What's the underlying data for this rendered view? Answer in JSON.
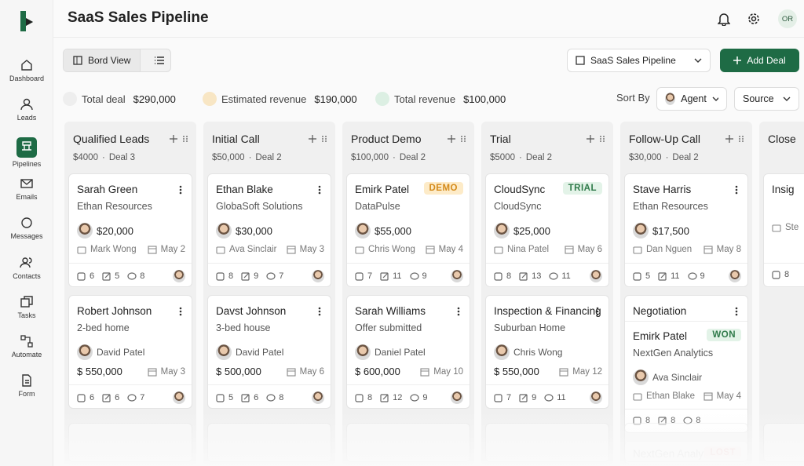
{
  "sidebar": {
    "items": [
      "Dashboard",
      "Leads",
      "Pipelines",
      "Emails",
      "Messages",
      "Contacts",
      "Tasks",
      "Automate",
      "Form"
    ]
  },
  "header": {
    "title": "SaaS Sales Pipeline",
    "avatar": "OR"
  },
  "toolbar": {
    "view": "Bord View",
    "pipeline": "SaaS Sales Pipeline",
    "add": "Add Deal"
  },
  "stats": [
    {
      "label": "Total deal",
      "value": "$290,000"
    },
    {
      "label": "Estimated revenue",
      "value": "$190,000"
    },
    {
      "label": "Total revenue",
      "value": "$100,000"
    }
  ],
  "sort": {
    "label": "Sort By",
    "agent": "Agent",
    "source": "Source"
  },
  "columns": [
    {
      "title": "Qualified Leads",
      "amount": "$4000",
      "deals": "Deal 3",
      "cards": [
        {
          "name": "Sarah Green",
          "company": "Ethan Resources",
          "amount": "$20,000",
          "owner": "Mark Wong",
          "date": "May 2",
          "counts": [
            6,
            5,
            8
          ]
        },
        {
          "name": "Robert Johnson",
          "company": "2-bed home",
          "person": "David Patel",
          "amount": "$ 550,000",
          "date": "May 3",
          "counts": [
            6,
            6,
            7
          ]
        }
      ]
    },
    {
      "title": "Initial Call",
      "amount": "$50,000",
      "deals": "Deal 2",
      "cards": [
        {
          "name": "Ethan Blake",
          "company": "GlobaSoft Solutions",
          "amount": "$30,000",
          "owner": "Ava Sinclair",
          "date": "May 3",
          "counts": [
            8,
            9,
            7
          ]
        },
        {
          "name": "Davst Johnson",
          "company": "3-bed house",
          "person": "David Patel",
          "amount": "$ 500,000",
          "date": "May 6",
          "counts": [
            5,
            6,
            8
          ]
        }
      ]
    },
    {
      "title": "Product Demo",
      "amount": "$100,000",
      "deals": "Deal 2",
      "cards": [
        {
          "name": "Emirk Patel",
          "tag": "DEMO",
          "company": "DataPulse",
          "amount": "$55,000",
          "owner": "Chris Wong",
          "date": "May 4",
          "counts": [
            7,
            11,
            9
          ]
        },
        {
          "name": "Sarah Williams",
          "company": "Offer submitted",
          "person": "Daniel Patel",
          "amount": "$ 600,000",
          "date": "May 10",
          "counts": [
            8,
            12,
            9
          ]
        }
      ]
    },
    {
      "title": "Trial",
      "amount": "$5000",
      "deals": "Deal 2",
      "cards": [
        {
          "name": "CloudSync",
          "tag": "TRIAL",
          "company": "CloudSync",
          "amount": "$25,000",
          "owner": "Nina Patel",
          "date": "May 6",
          "counts": [
            8,
            13,
            11
          ]
        },
        {
          "name": "Inspection & Financing",
          "company": "Suburban Home",
          "person": "Chris Wong",
          "amount": "$ 550,000",
          "date": "May 12",
          "counts": [
            7,
            9,
            11
          ]
        }
      ]
    },
    {
      "title": "Follow-Up Call",
      "amount": "$30,000",
      "deals": "Deal 2",
      "cards": [
        {
          "name": "Stave Harris",
          "company": "Ethan Resources",
          "amount": "$17,500",
          "owner": "Dan Nguen",
          "date": "May 8",
          "counts": [
            5,
            11,
            9
          ]
        },
        {
          "heading": "Negotiation",
          "name": "Emirk Patel",
          "tag": "WON",
          "company": "NextGen Analytics",
          "person": "Ava Sinclair",
          "owner": "Ethan Blake",
          "date": "May 4",
          "counts": [
            8,
            8,
            8
          ]
        },
        {
          "name": "NextGen Analyt...",
          "tag": "LOST"
        }
      ]
    },
    {
      "title": "Close",
      "cards": [
        {
          "name": "Insig",
          "owner": "Ste",
          "counts": [
            8
          ]
        }
      ]
    }
  ]
}
